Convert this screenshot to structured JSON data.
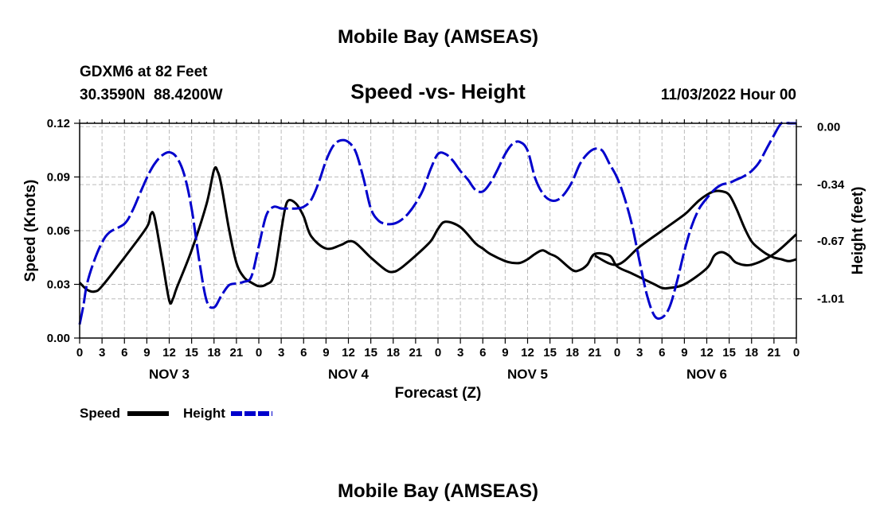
{
  "chart_data": {
    "type": "line",
    "title": "Mobile Bay (AMSEAS)",
    "repeat_title": "Mobile Bay (AMSEAS)",
    "subtitle": "Speed -vs- Height",
    "station": "GDXM6 at 82 Feet",
    "location": "30.3590N  88.4200W",
    "issued": "11/03/2022 Hour 00",
    "xlabel": "Forecast (Z)",
    "ylabel_left": "Speed (Knots)",
    "ylabel_right": "Height (feet)",
    "xlim": [
      0,
      96
    ],
    "ylim_left": [
      0,
      0.12
    ],
    "ylim_right": [
      -1.24,
      0.02
    ],
    "grid": true,
    "x_ticks": [
      0,
      3,
      6,
      9,
      12,
      15,
      18,
      21,
      24,
      27,
      30,
      33,
      36,
      39,
      42,
      45,
      48,
      51,
      54,
      57,
      60,
      63,
      66,
      69,
      72,
      75,
      78,
      81,
      84,
      87,
      90,
      93,
      96
    ],
    "x_tick_labels": [
      "0",
      "3",
      "6",
      "9",
      "12",
      "15",
      "18",
      "21",
      "0",
      "3",
      "6",
      "9",
      "12",
      "15",
      "18",
      "21",
      "0",
      "3",
      "6",
      "9",
      "12",
      "15",
      "18",
      "21",
      "0",
      "3",
      "6",
      "9",
      "12",
      "15",
      "18",
      "21",
      "0"
    ],
    "day_labels": [
      {
        "x": 12,
        "label": "NOV 3"
      },
      {
        "x": 36,
        "label": "NOV 4"
      },
      {
        "x": 60,
        "label": "NOV 5"
      },
      {
        "x": 84,
        "label": "NOV 6"
      }
    ],
    "y_ticks_left": [
      0.0,
      0.03,
      0.06,
      0.09,
      0.12
    ],
    "y_tick_labels_left": [
      "0.00",
      "0.03",
      "0.06",
      "0.09",
      "0.12"
    ],
    "y_ticks_right": [
      0.0,
      -0.34,
      -0.67,
      -1.01
    ],
    "y_tick_labels_right": [
      "0.00",
      "-0.34",
      "-0.67",
      "-1.01"
    ],
    "legend": [
      {
        "name": "Speed",
        "color": "#000000",
        "dash": "solid"
      },
      {
        "name": "Height",
        "color": "#0000cc",
        "dash": "dashed"
      }
    ],
    "series": [
      {
        "name": "Speed",
        "axis": "left",
        "color": "#000000",
        "x": [
          0,
          1,
          2,
          3,
          6,
          9,
          9.5,
          10,
          11,
          12,
          12.5,
          13,
          15,
          17,
          18,
          18.5,
          19,
          20,
          21,
          22,
          23,
          24,
          25,
          26,
          27,
          27.5,
          28,
          29,
          30,
          31,
          33,
          35,
          36,
          37,
          39,
          41,
          42,
          43,
          45,
          47,
          48,
          49,
          51,
          53,
          54,
          55,
          57,
          58,
          59,
          60,
          61,
          62,
          63,
          64,
          66,
          67,
          68,
          69,
          71,
          72,
          74,
          77,
          78,
          79,
          81,
          84,
          85,
          86,
          87,
          88,
          90,
          93,
          96
        ],
        "y": [
          0.031,
          0.027,
          0.026,
          0.029,
          0.045,
          0.062,
          0.069,
          0.068,
          0.045,
          0.021,
          0.022,
          0.028,
          0.049,
          0.075,
          0.094,
          0.093,
          0.085,
          0.061,
          0.042,
          0.034,
          0.031,
          0.029,
          0.03,
          0.035,
          0.06,
          0.072,
          0.077,
          0.075,
          0.068,
          0.057,
          0.05,
          0.052,
          0.054,
          0.053,
          0.045,
          0.038,
          0.037,
          0.039,
          0.046,
          0.054,
          0.061,
          0.065,
          0.062,
          0.053,
          0.05,
          0.047,
          0.043,
          0.042,
          0.042,
          0.044,
          0.047,
          0.049,
          0.047,
          0.045,
          0.038,
          0.038,
          0.041,
          0.047,
          0.046,
          0.04,
          0.036,
          0.03,
          0.028,
          0.028,
          0.03,
          0.039,
          0.046,
          0.048,
          0.046,
          0.042,
          0.041,
          0.047,
          0.058
        ]
      },
      {
        "name": "Speed (cont.)",
        "axis": "left",
        "color": "#000000",
        "x": [
          69,
          72,
          75,
          78,
          81,
          82,
          83,
          84,
          85,
          86,
          87,
          88,
          89,
          90,
          91,
          92,
          93,
          94,
          95,
          96
        ],
        "y": [
          0.046,
          0.041,
          0.051,
          0.06,
          0.069,
          0.073,
          0.077,
          0.08,
          0.082,
          0.082,
          0.08,
          0.072,
          0.062,
          0.054,
          0.05,
          0.047,
          0.045,
          0.044,
          0.043,
          0.044
        ]
      },
      {
        "name": "Height",
        "axis": "right",
        "color": "#0000cc",
        "x": [
          0,
          0.5,
          1,
          2,
          3,
          4,
          6,
          7,
          8,
          9,
          10,
          11,
          12,
          13,
          14,
          15,
          16,
          17,
          18,
          19,
          20,
          21,
          22,
          23,
          24,
          25,
          26,
          27,
          28,
          29,
          30,
          31,
          32,
          33,
          34,
          35,
          36,
          37,
          38,
          39,
          40,
          41,
          42,
          43,
          44,
          45,
          46,
          47,
          48,
          49,
          50,
          51,
          52,
          53,
          54,
          55,
          56,
          57,
          58,
          59,
          60,
          61,
          62,
          63,
          64,
          65,
          66,
          67,
          68,
          69,
          70,
          71,
          72,
          73,
          74,
          75,
          76,
          77,
          78,
          79,
          80,
          81,
          82,
          83,
          84,
          85,
          86,
          87,
          88,
          89,
          90,
          91,
          92,
          93,
          94,
          95,
          96
        ],
        "y": [
          -1.16,
          -1.05,
          -0.92,
          -0.78,
          -0.68,
          -0.62,
          -0.57,
          -0.5,
          -0.4,
          -0.3,
          -0.22,
          -0.17,
          -0.15,
          -0.18,
          -0.28,
          -0.48,
          -0.78,
          -1.02,
          -1.06,
          -0.99,
          -0.93,
          -0.92,
          -0.91,
          -0.88,
          -0.7,
          -0.52,
          -0.47,
          -0.48,
          -0.48,
          -0.48,
          -0.47,
          -0.43,
          -0.33,
          -0.2,
          -0.11,
          -0.08,
          -0.09,
          -0.15,
          -0.3,
          -0.48,
          -0.55,
          -0.57,
          -0.57,
          -0.55,
          -0.51,
          -0.45,
          -0.37,
          -0.25,
          -0.16,
          -0.16,
          -0.2,
          -0.26,
          -0.31,
          -0.37,
          -0.38,
          -0.33,
          -0.25,
          -0.16,
          -0.1,
          -0.09,
          -0.14,
          -0.3,
          -0.39,
          -0.43,
          -0.43,
          -0.39,
          -0.32,
          -0.22,
          -0.16,
          -0.13,
          -0.14,
          -0.22,
          -0.3,
          -0.42,
          -0.58,
          -0.79,
          -0.99,
          -1.11,
          -1.12,
          -1.06,
          -0.91,
          -0.73,
          -0.58,
          -0.48,
          -0.42,
          -0.37,
          -0.34,
          -0.33,
          -0.31,
          -0.29,
          -0.26,
          -0.21,
          -0.13,
          -0.05,
          0.02,
          0.04,
          0.04
        ]
      }
    ]
  }
}
